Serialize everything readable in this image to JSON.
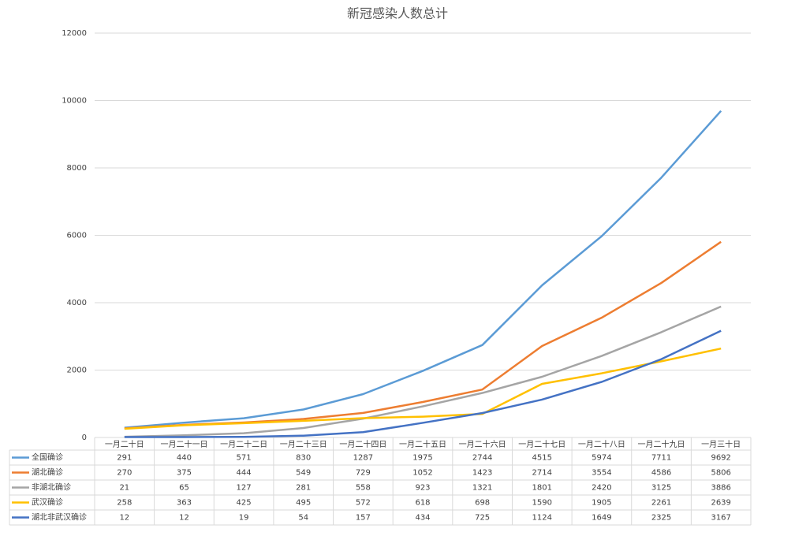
{
  "chart_data": {
    "type": "line",
    "title": "新冠感染人数总计",
    "categories": [
      "一月二十日",
      "一月二十一日",
      "一月二十二日",
      "一月二十三日",
      "一月二十四日",
      "一月二十五日",
      "一月二十六日",
      "一月二十七日",
      "一月二十八日",
      "一月二十九日",
      "一月三十日"
    ],
    "series": [
      {
        "name": "全国确诊",
        "color": "#5b9bd5",
        "values": [
          291,
          440,
          571,
          830,
          1287,
          1975,
          2744,
          4515,
          5974,
          7711,
          9692
        ]
      },
      {
        "name": "湖北确诊",
        "color": "#ed7d31",
        "values": [
          270,
          375,
          444,
          549,
          729,
          1052,
          1423,
          2714,
          3554,
          4586,
          5806
        ]
      },
      {
        "name": "非湖北确诊",
        "color": "#a5a5a5",
        "values": [
          21,
          65,
          127,
          281,
          558,
          923,
          1321,
          1801,
          2420,
          3125,
          3886
        ]
      },
      {
        "name": "武汉确诊",
        "color": "#ffc000",
        "values": [
          258,
          363,
          425,
          495,
          572,
          618,
          698,
          1590,
          1905,
          2261,
          2639
        ]
      },
      {
        "name": "湖北非武汉确诊",
        "color": "#4472c4",
        "values": [
          12,
          12,
          19,
          54,
          157,
          434,
          725,
          1124,
          1649,
          2325,
          3167
        ]
      }
    ],
    "ylim": [
      0,
      12000
    ],
    "yticks": [
      0,
      2000,
      4000,
      6000,
      8000,
      10000,
      12000
    ],
    "grid": true
  }
}
